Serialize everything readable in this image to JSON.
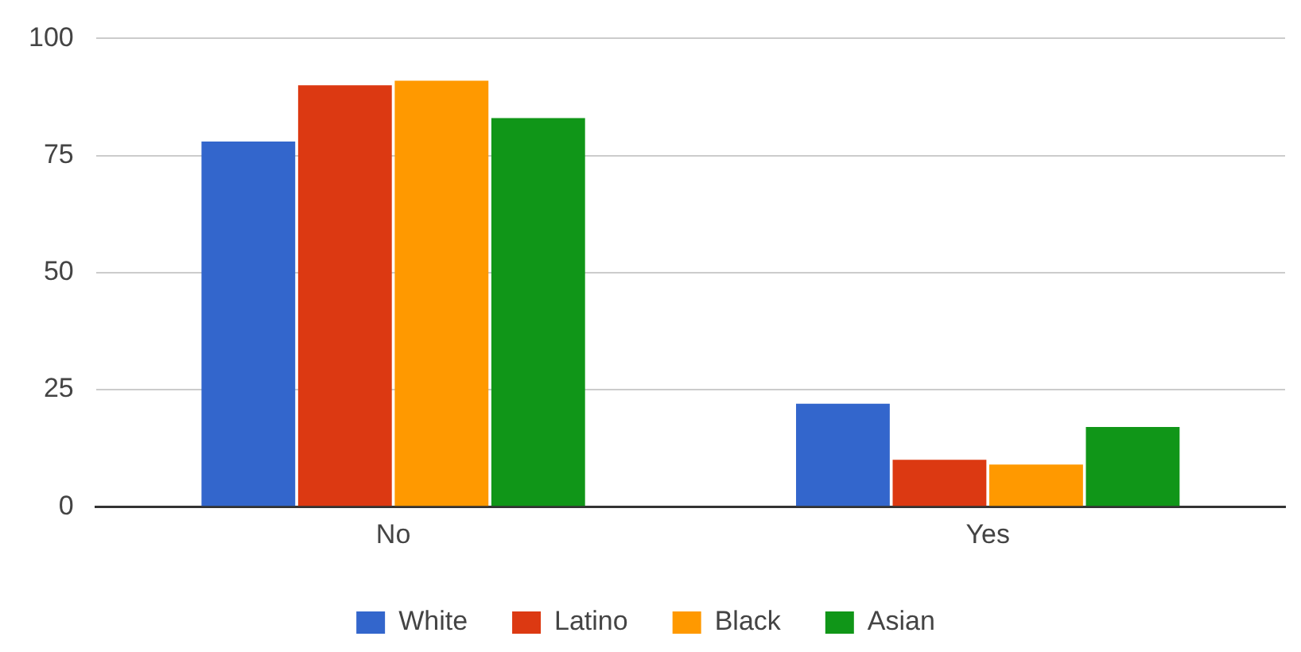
{
  "chart_data": {
    "type": "bar",
    "categories": [
      "No",
      "Yes"
    ],
    "series": [
      {
        "name": "White",
        "color": "#3366cc",
        "values": [
          78,
          22
        ]
      },
      {
        "name": "Latino",
        "color": "#dc3912",
        "values": [
          90,
          10
        ]
      },
      {
        "name": "Black",
        "color": "#ff9900",
        "values": [
          91,
          9
        ]
      },
      {
        "name": "Asian",
        "color": "#109618",
        "values": [
          83,
          17
        ]
      }
    ],
    "ylim": [
      0,
      100
    ],
    "yticks": [
      0,
      25,
      50,
      75,
      100
    ],
    "grid": "y",
    "legend": "bottom"
  }
}
